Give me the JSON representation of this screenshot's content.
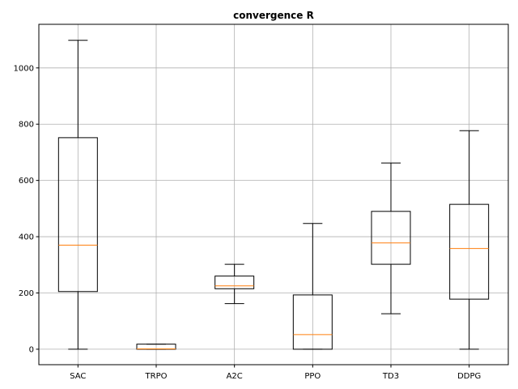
{
  "chart_data": {
    "type": "box",
    "title": "convergence R",
    "xlabel": "",
    "ylabel": "",
    "categories": [
      "SAC",
      "TRPO",
      "A2C",
      "PPO",
      "TD3",
      "DDPG"
    ],
    "boxes": [
      {
        "whisker_low": 0,
        "q1": 205,
        "median": 370,
        "q3": 752,
        "whisker_high": 1098
      },
      {
        "whisker_low": 0,
        "q1": 0,
        "median": 1,
        "q3": 18,
        "whisker_high": 18
      },
      {
        "whisker_low": 162,
        "q1": 215,
        "median": 225,
        "q3": 260,
        "whisker_high": 302
      },
      {
        "whisker_low": 0,
        "q1": 0,
        "median": 52,
        "q3": 193,
        "whisker_high": 447
      },
      {
        "whisker_low": 126,
        "q1": 302,
        "median": 378,
        "q3": 490,
        "whisker_high": 662
      },
      {
        "whisker_low": 0,
        "q1": 178,
        "median": 358,
        "q3": 515,
        "whisker_high": 777
      }
    ],
    "ylim": [
      -55,
      1155
    ],
    "yticks": [
      0,
      200,
      400,
      600,
      800,
      1000
    ],
    "grid": true,
    "colors": {
      "box": "#000000",
      "median": "#ff7f0e",
      "grid": "#b0b0b0"
    }
  }
}
